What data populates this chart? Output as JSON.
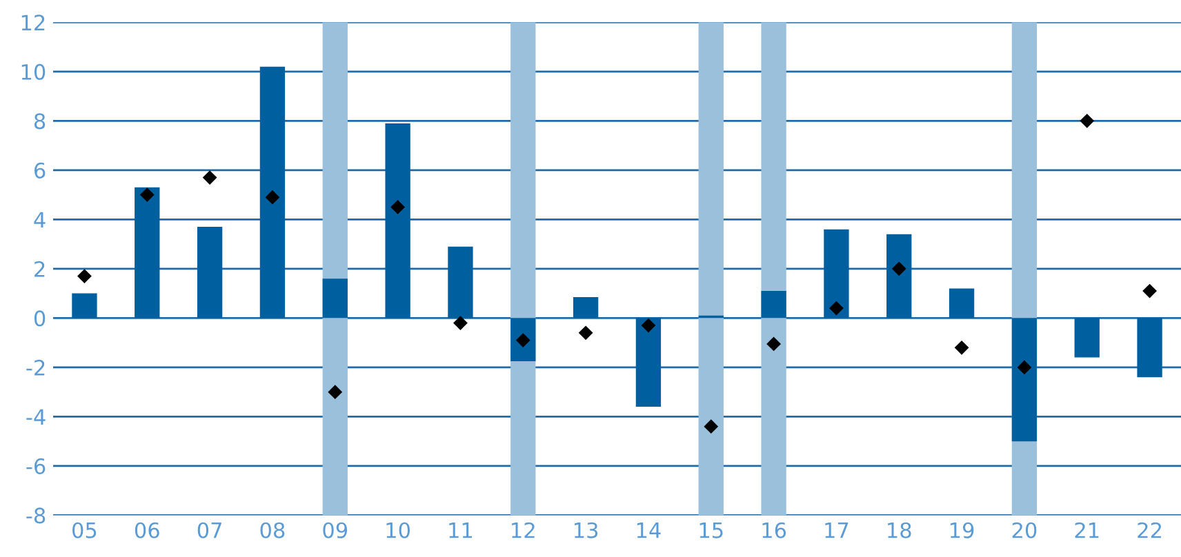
{
  "chart_data": {
    "type": "bar",
    "categories": [
      "05",
      "06",
      "07",
      "08",
      "09",
      "10",
      "11",
      "12",
      "13",
      "14",
      "15",
      "16",
      "17",
      "18",
      "19",
      "20",
      "21",
      "22"
    ],
    "series": [
      {
        "color": "#00609f",
        "values": [
          1.0,
          5.3,
          3.7,
          10.2,
          1.6,
          7.9,
          2.9,
          -1.75,
          0.85,
          -3.6,
          0.1,
          1.1,
          3.6,
          3.4,
          1.2,
          -5.0,
          -1.6,
          -2.4
        ]
      },
      {
        "type": "scatter",
        "color": "#000000",
        "marker": "diamond",
        "x": [
          "05",
          "06",
          "07",
          "08",
          "09",
          "10",
          "11",
          "12",
          "13",
          "14",
          "15",
          "16",
          "17",
          "18",
          "19",
          "20",
          "21",
          "22"
        ],
        "values": [
          1.7,
          5.0,
          5.7,
          4.9,
          -3.0,
          4.5,
          -0.2,
          -0.9,
          -0.6,
          -0.3,
          -4.4,
          -1.05,
          0.4,
          2.0,
          -1.2,
          -2.0,
          8.0,
          1.1
        ]
      }
    ],
    "bands": [
      {
        "axis": "x",
        "from": "09",
        "to": "09",
        "color": "#9bc0dc"
      },
      {
        "axis": "x",
        "from": "12",
        "to": "12",
        "color": "#9bc0dc"
      },
      {
        "axis": "x",
        "from": "15",
        "to": "15",
        "color": "#9bc0dc"
      },
      {
        "axis": "x",
        "from": "16",
        "to": "16",
        "color": "#9bc0dc"
      },
      {
        "axis": "x",
        "from": "20",
        "to": "20",
        "color": "#9bc0dc"
      }
    ],
    "ylim": [
      -8,
      12
    ],
    "yticks": [
      -8,
      -6,
      -4,
      -2,
      0,
      2,
      4,
      6,
      8,
      10,
      12
    ],
    "grid": "y",
    "legend": false
  }
}
